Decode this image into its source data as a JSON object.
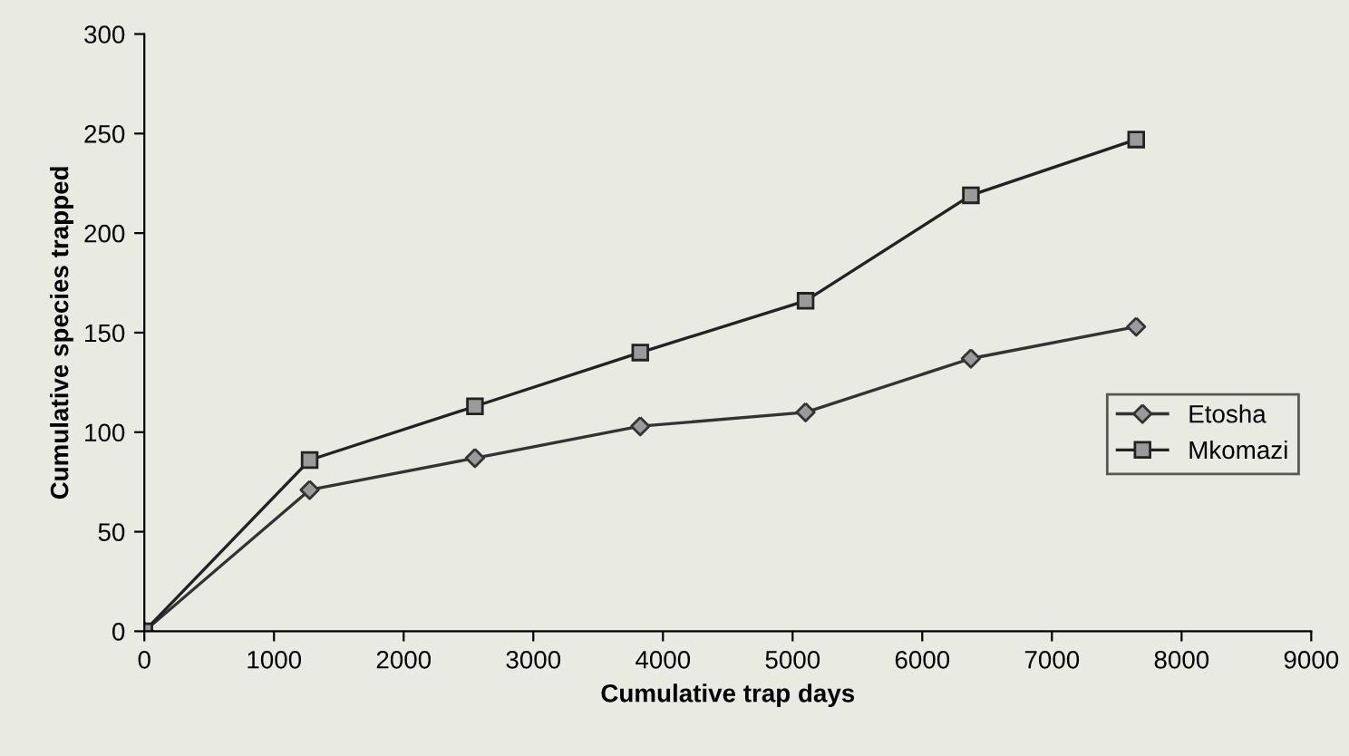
{
  "chart_data": {
    "type": "line",
    "xlabel": "Cumulative trap days",
    "ylabel": "Cumulative species trapped",
    "x": [
      0,
      1275,
      2550,
      3825,
      5100,
      6375,
      7650
    ],
    "series": [
      {
        "name": "Etosha",
        "color": "#333333",
        "marker": "diamond",
        "values": [
          0,
          71,
          87,
          103,
          110,
          137,
          153
        ]
      },
      {
        "name": "Mkomazi",
        "color": "#222222",
        "marker": "square",
        "values": [
          0,
          86,
          113,
          140,
          166,
          219,
          247
        ]
      }
    ],
    "xlim": [
      0,
      9000
    ],
    "xticks": [
      0,
      1000,
      2000,
      3000,
      4000,
      5000,
      6000,
      7000,
      8000,
      9000
    ],
    "ylim": [
      0,
      300
    ],
    "yticks": [
      0,
      50,
      100,
      150,
      200,
      250,
      300
    ],
    "grid": false,
    "legend": "right"
  }
}
